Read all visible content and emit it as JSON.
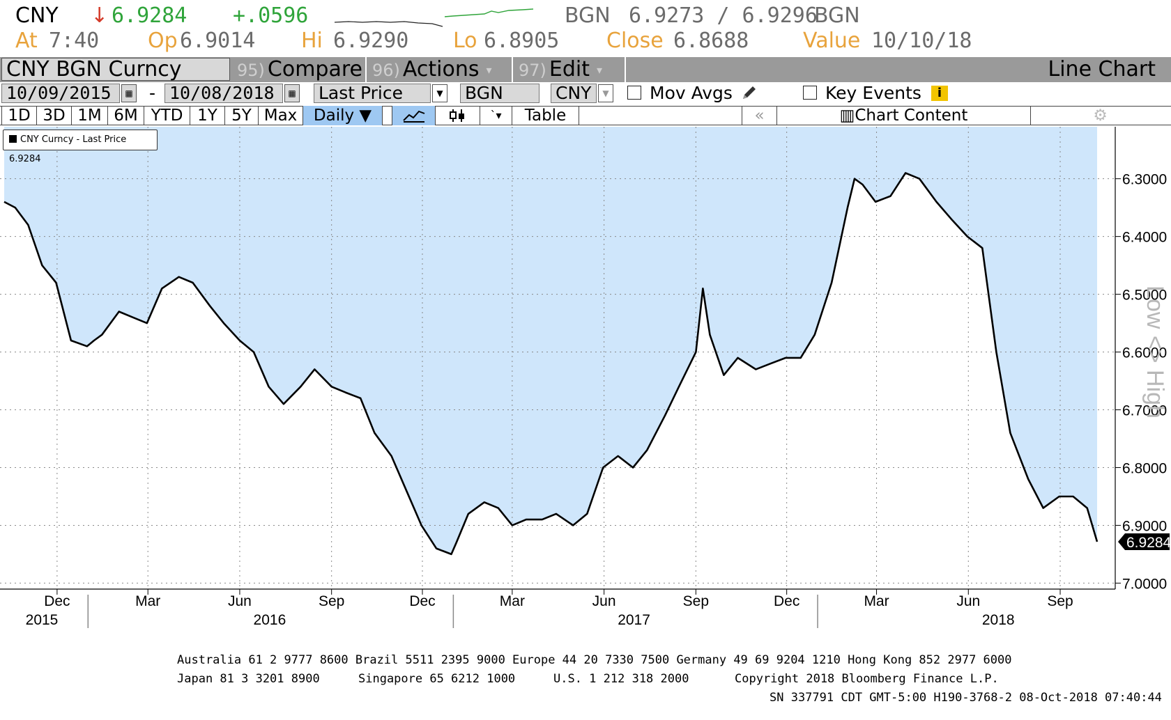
{
  "header": {
    "ticker": "CNY",
    "arrow": "↓",
    "last": "6.9284",
    "change": "+.0596",
    "source1": "BGN",
    "bidask": "6.9273 / 6.9296",
    "source2": "BGN",
    "at_label": "At",
    "at_value": "7:40",
    "op_label": "Op",
    "op_value": "6.9014",
    "hi_label": "Hi",
    "hi_value": "6.9290",
    "lo_label": "Lo",
    "lo_value": "6.8905",
    "close_label": "Close",
    "close_value": "6.8688",
    "value_label": "Value",
    "value_value": "10/10/18"
  },
  "toolbar": {
    "security": "CNY BGN Curncy",
    "compare_num": "95)",
    "compare": "Compare",
    "actions_num": "96)",
    "actions": "Actions",
    "edit_num": "97)",
    "edit": "Edit",
    "chart_type": "Line Chart"
  },
  "controls": {
    "start_date": "10/09/2015",
    "dash": "-",
    "end_date": "10/08/2018",
    "field": "Last Price",
    "source": "BGN",
    "currency": "CNY",
    "mov_avgs": "Mov Avgs",
    "key_events": "Key Events"
  },
  "periods": [
    "1D",
    "3D",
    "1M",
    "6M",
    "YTD",
    "1Y",
    "5Y",
    "Max"
  ],
  "frequency": "Daily ▼",
  "table_label": "Table",
  "chart_content": "Chart Content",
  "legend": "CNY Curncy - Last Price 6.9284",
  "last_price_tag": "6.9284",
  "axis_side_label": "Low <> High",
  "footer": {
    "line1": "Australia 61 2 9777 8600 Brazil 5511 2395 9000 Europe 44 20 7330 7500 Germany 49 69 9204 1210 Hong Kong 852 2977 6000",
    "line2a": "Japan 81 3 3201 8900",
    "line2b": "Singapore 65 6212 1000",
    "line2c": "U.S. 1 212 318 2000",
    "line2d": "Copyright 2018 Bloomberg Finance L.P.",
    "line3": "SN 337791 CDT  GMT-5:00 H190-3768-2 08-Oct-2018 07:40:44"
  },
  "colors": {
    "fill": "#cfe6fb",
    "line": "#000000",
    "header_amber": "#e8a33c",
    "up": "#2fa43a",
    "down": "#d43b2a",
    "toolbar": "#9a9a9a",
    "selected": "#9ec8f2"
  },
  "chart_data": {
    "type": "area",
    "title": "",
    "xlabel": "",
    "ylabel": "Low <> High",
    "y_inverted": true,
    "ylim": [
      7.02,
      6.21
    ],
    "yticks": [
      6.3,
      6.4,
      6.5,
      6.6,
      6.7,
      6.8,
      6.9,
      7.0
    ],
    "ytick_labels": [
      "6.3000",
      "6.4000",
      "6.5000",
      "6.6000",
      "6.7000",
      "6.8000",
      "6.9000",
      "7.0000"
    ],
    "grid": true,
    "legend_position": "top-left",
    "month_ticks": [
      {
        "date": "2015-12-01",
        "label": "Dec"
      },
      {
        "date": "2016-03-01",
        "label": "Mar"
      },
      {
        "date": "2016-06-01",
        "label": "Jun"
      },
      {
        "date": "2016-09-01",
        "label": "Sep"
      },
      {
        "date": "2016-12-01",
        "label": "Dec"
      },
      {
        "date": "2017-03-01",
        "label": "Mar"
      },
      {
        "date": "2017-06-01",
        "label": "Jun"
      },
      {
        "date": "2017-09-01",
        "label": "Sep"
      },
      {
        "date": "2017-12-01",
        "label": "Dec"
      },
      {
        "date": "2018-03-01",
        "label": "Mar"
      },
      {
        "date": "2018-06-01",
        "label": "Jun"
      },
      {
        "date": "2018-09-01",
        "label": "Sep"
      }
    ],
    "year_labels": [
      {
        "date": "2015-11-01",
        "label": "2015"
      },
      {
        "date": "2016-07-01",
        "label": "2016"
      },
      {
        "date": "2017-07-01",
        "label": "2017"
      },
      {
        "date": "2018-07-01",
        "label": "2018"
      }
    ],
    "year_dividers": [
      "2016-01-01",
      "2017-01-01",
      "2018-01-01"
    ],
    "series": [
      {
        "x": [
          "2015-10-09",
          "2015-10-20",
          "2015-11-02",
          "2015-11-16",
          "2015-11-30",
          "2015-12-15",
          "2015-12-31",
          "2016-01-07",
          "2016-01-15",
          "2016-02-01",
          "2016-02-15",
          "2016-02-29",
          "2016-03-15",
          "2016-04-01",
          "2016-04-15",
          "2016-05-02",
          "2016-05-16",
          "2016-06-01",
          "2016-06-15",
          "2016-06-30",
          "2016-07-15",
          "2016-08-01",
          "2016-08-15",
          "2016-09-01",
          "2016-09-15",
          "2016-09-30",
          "2016-10-14",
          "2016-10-31",
          "2016-11-15",
          "2016-11-30",
          "2016-12-15",
          "2016-12-30",
          "2017-01-04",
          "2017-01-16",
          "2017-02-01",
          "2017-02-15",
          "2017-03-01",
          "2017-03-15",
          "2017-03-31",
          "2017-04-14",
          "2017-05-01",
          "2017-05-15",
          "2017-05-31",
          "2017-06-15",
          "2017-06-30",
          "2017-07-14",
          "2017-08-01",
          "2017-08-15",
          "2017-09-01",
          "2017-09-08",
          "2017-09-15",
          "2017-09-29",
          "2017-10-13",
          "2017-10-31",
          "2017-11-15",
          "2017-11-30",
          "2017-12-15",
          "2017-12-29",
          "2018-01-15",
          "2018-01-31",
          "2018-02-07",
          "2018-02-15",
          "2018-02-28",
          "2018-03-15",
          "2018-03-30",
          "2018-04-13",
          "2018-04-30",
          "2018-05-15",
          "2018-05-31",
          "2018-06-15",
          "2018-06-29",
          "2018-07-13",
          "2018-07-31",
          "2018-08-15",
          "2018-08-31",
          "2018-09-14",
          "2018-09-28",
          "2018-10-08"
        ],
        "values": [
          6.34,
          6.35,
          6.38,
          6.45,
          6.48,
          6.58,
          6.59,
          6.58,
          6.57,
          6.53,
          6.54,
          6.55,
          6.49,
          6.47,
          6.48,
          6.52,
          6.55,
          6.58,
          6.6,
          6.66,
          6.69,
          6.66,
          6.63,
          6.66,
          6.67,
          6.68,
          6.74,
          6.78,
          6.84,
          6.9,
          6.94,
          6.95,
          6.93,
          6.88,
          6.86,
          6.87,
          6.9,
          6.89,
          6.89,
          6.88,
          6.9,
          6.88,
          6.8,
          6.78,
          6.8,
          6.77,
          6.71,
          6.66,
          6.6,
          6.49,
          6.57,
          6.64,
          6.61,
          6.63,
          6.62,
          6.61,
          6.61,
          6.57,
          6.48,
          6.35,
          6.3,
          6.31,
          6.34,
          6.33,
          6.29,
          6.3,
          6.34,
          6.37,
          6.4,
          6.42,
          6.6,
          6.74,
          6.82,
          6.87,
          6.85,
          6.85,
          6.87,
          6.9284
        ]
      }
    ]
  }
}
